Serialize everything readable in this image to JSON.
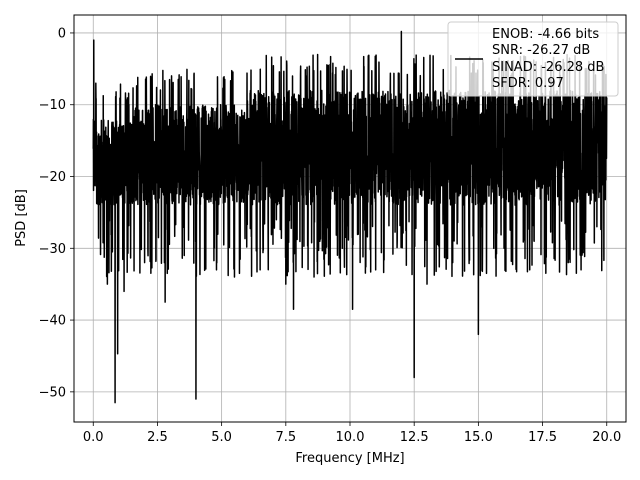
{
  "chart_data": {
    "type": "line",
    "title": "",
    "xlabel": "Frequency [MHz]",
    "ylabel": "PSD [dB]",
    "xlim": [
      -0.75,
      20.75
    ],
    "ylim": [
      -54.2,
      2.5
    ],
    "xticks": [
      0.0,
      2.5,
      5.0,
      7.5,
      10.0,
      12.5,
      15.0,
      17.5,
      20.0
    ],
    "xtick_labels": [
      "0.0",
      "2.5",
      "5.0",
      "7.5",
      "10.0",
      "12.5",
      "15.0",
      "17.5",
      "20.0"
    ],
    "yticks": [
      0,
      -10,
      -20,
      -30,
      -40,
      -50
    ],
    "ytick_labels": [
      "0",
      "−10",
      "−20",
      "−30",
      "−40",
      "−50"
    ],
    "grid": true,
    "legend": {
      "placement": "upper-right",
      "lines": [
        "ENOB: -4.66 bits",
        "SNR: -26.27 dB",
        "SINAD: -26.28 dB",
        "SFDR: 0.97"
      ]
    },
    "series": [
      {
        "color": "#000000",
        "x_range": [
          0.0,
          20.0
        ],
        "typical_band_db": [
          -24,
          -10
        ],
        "spikes": [
          {
            "x": 0.02,
            "y": -1
          },
          {
            "x": 0.1,
            "y": -7
          },
          {
            "x": 0.55,
            "y": -35
          },
          {
            "x": 0.85,
            "y": -51.5
          },
          {
            "x": 0.95,
            "y": -44.7
          },
          {
            "x": 1.2,
            "y": -36
          },
          {
            "x": 2.0,
            "y": -32
          },
          {
            "x": 2.8,
            "y": -37.5
          },
          {
            "x": 4.0,
            "y": -51
          },
          {
            "x": 4.8,
            "y": -33
          },
          {
            "x": 5.5,
            "y": -34
          },
          {
            "x": 6.5,
            "y": -33
          },
          {
            "x": 7.5,
            "y": -35
          },
          {
            "x": 7.8,
            "y": -38.5
          },
          {
            "x": 8.6,
            "y": -34
          },
          {
            "x": 9.7,
            "y": -30
          },
          {
            "x": 10.1,
            "y": -38.5
          },
          {
            "x": 11.0,
            "y": -33
          },
          {
            "x": 12.0,
            "y": 0.2
          },
          {
            "x": 12.5,
            "y": -48
          },
          {
            "x": 13.0,
            "y": -35
          },
          {
            "x": 14.0,
            "y": -32
          },
          {
            "x": 15.0,
            "y": -42
          },
          {
            "x": 16.0,
            "y": -30
          },
          {
            "x": 17.0,
            "y": -33
          },
          {
            "x": 18.5,
            "y": -32
          },
          {
            "x": 19.0,
            "y": -33
          }
        ]
      }
    ]
  }
}
